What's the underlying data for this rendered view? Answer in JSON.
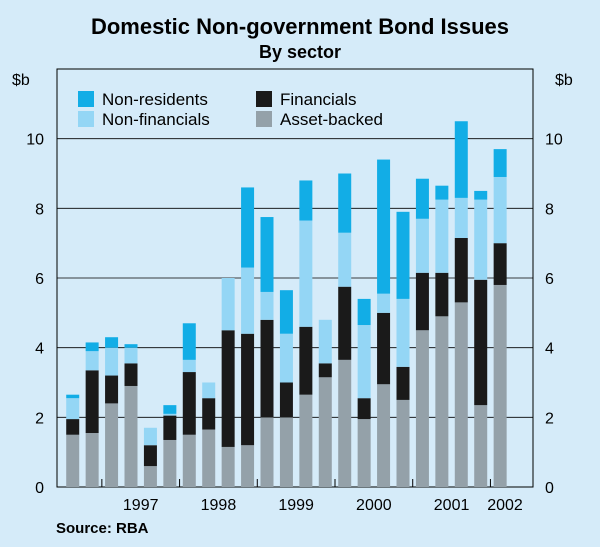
{
  "chart_data": {
    "type": "bar",
    "stacked": true,
    "title": "Domestic Non-government Bond Issues",
    "subtitle": "By sector",
    "ylabel_left": "$b",
    "ylabel_right": "$b",
    "ylim": [
      0,
      12
    ],
    "yticks": [
      0,
      2,
      4,
      6,
      8,
      10
    ],
    "x_year_labels": [
      "1997",
      "1998",
      "1999",
      "2000",
      "2001",
      "2002"
    ],
    "source": "Source: RBA",
    "legend_position": "top-left",
    "colors": {
      "Asset-backed": "#94a1a9",
      "Financials": "#1a1a1a",
      "Non-financials": "#94d6f5",
      "Non-residents": "#12ade6"
    },
    "categories": [
      "1996 Q3",
      "1996 Q4",
      "1997 Q1",
      "1997 Q2",
      "1997 Q3",
      "1997 Q4",
      "1998 Q1",
      "1998 Q2",
      "1998 Q3",
      "1998 Q4",
      "1999 Q1",
      "1999 Q2",
      "1999 Q3",
      "1999 Q4",
      "2000 Q1",
      "2000 Q2",
      "2000 Q3",
      "2000 Q4",
      "2001 Q1",
      "2001 Q2",
      "2001 Q3",
      "2001 Q4",
      "2002 Q1",
      "2002 Q2"
    ],
    "series": [
      {
        "name": "Asset-backed",
        "values": [
          1.5,
          1.55,
          2.4,
          2.9,
          0.6,
          1.35,
          1.5,
          1.65,
          1.15,
          1.2,
          2.0,
          2.0,
          2.65,
          3.15,
          3.65,
          1.95,
          2.95,
          2.5,
          4.5,
          4.9,
          5.3,
          2.35,
          5.8,
          0
        ]
      },
      {
        "name": "Financials",
        "values": [
          0.45,
          1.8,
          0.8,
          0.65,
          0.6,
          0.7,
          1.8,
          0.9,
          3.35,
          3.2,
          2.8,
          1.0,
          1.95,
          0.4,
          2.1,
          0.6,
          2.05,
          0.95,
          1.65,
          1.25,
          1.85,
          3.6,
          1.2,
          0
        ]
      },
      {
        "name": "Non-financials",
        "values": [
          0.6,
          0.55,
          0.8,
          0.45,
          0.5,
          0.05,
          0.35,
          0.45,
          1.5,
          1.9,
          0.8,
          1.4,
          3.05,
          1.25,
          1.55,
          2.1,
          0.55,
          1.95,
          1.55,
          2.1,
          1.15,
          2.3,
          1.9,
          0
        ]
      },
      {
        "name": "Non-residents",
        "values": [
          0.1,
          0.25,
          0.3,
          0.1,
          0,
          0.25,
          1.05,
          0,
          0,
          2.3,
          2.15,
          1.25,
          1.15,
          0,
          1.7,
          0.75,
          3.85,
          2.5,
          1.15,
          0.4,
          2.2,
          0.25,
          0.8,
          0
        ]
      }
    ],
    "legend": [
      {
        "name": "Non-residents",
        "col": 0
      },
      {
        "name": "Financials",
        "col": 1
      },
      {
        "name": "Non-financials",
        "col": 0
      },
      {
        "name": "Asset-backed",
        "col": 1
      }
    ]
  }
}
